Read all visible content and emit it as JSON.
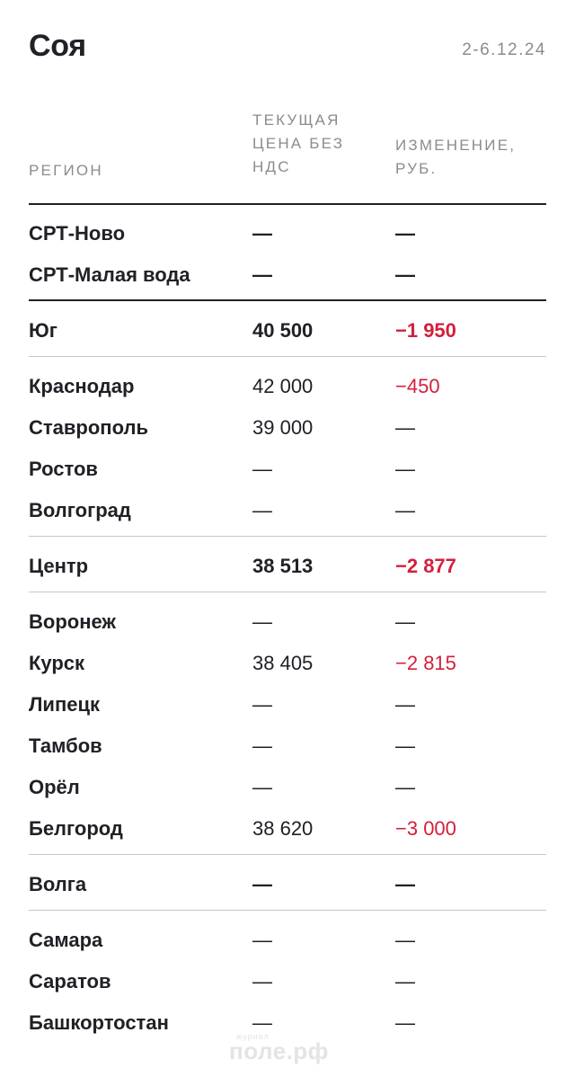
{
  "header": {
    "title": "Соя",
    "date": "2-6.12.24"
  },
  "columns": {
    "region": "РЕГИОН",
    "price": "ТЕКУЩАЯ ЦЕНА БЕЗ НДС",
    "change": "ИЗМЕНЕНИЕ, РУБ."
  },
  "rows": [
    {
      "region": "СРТ-Ново",
      "price": "—",
      "change": "—"
    },
    {
      "region": "СРТ-Малая вода",
      "price": "—",
      "change": "—"
    },
    {
      "region": "Юг",
      "price": "40 500",
      "change": "−1 950"
    },
    {
      "region": "Краснодар",
      "price": "42 000",
      "change": "−450"
    },
    {
      "region": "Ставрополь",
      "price": "39 000",
      "change": "—"
    },
    {
      "region": "Ростов",
      "price": "—",
      "change": "—"
    },
    {
      "region": "Волгоград",
      "price": "—",
      "change": "—"
    },
    {
      "region": "Центр",
      "price": "38 513",
      "change": "−2 877"
    },
    {
      "region": "Воронеж",
      "price": "—",
      "change": "—"
    },
    {
      "region": "Курск",
      "price": "38 405",
      "change": "−2 815"
    },
    {
      "region": "Липецк",
      "price": "—",
      "change": "—"
    },
    {
      "region": "Тамбов",
      "price": "—",
      "change": "—"
    },
    {
      "region": "Орёл",
      "price": "—",
      "change": "—"
    },
    {
      "region": "Белгород",
      "price": "38 620",
      "change": "−3 000"
    },
    {
      "region": "Волга",
      "price": "—",
      "change": "—"
    },
    {
      "region": "Самара",
      "price": "—",
      "change": "—"
    },
    {
      "region": "Саратов",
      "price": "—",
      "change": "—"
    },
    {
      "region": "Башкортостан",
      "price": "—",
      "change": "—"
    }
  ],
  "watermark": {
    "small": "журнал",
    "big": "поле.рф"
  },
  "colors": {
    "negative": "#d31f3c",
    "text": "#222026",
    "muted": "#8c8a8e",
    "divider": "#c8c6ca"
  }
}
